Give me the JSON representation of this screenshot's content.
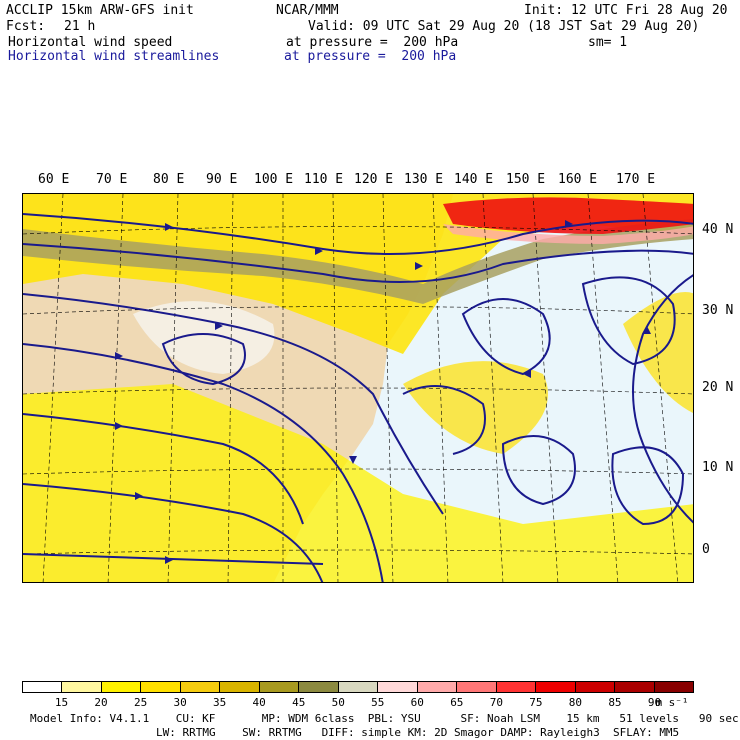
{
  "header": {
    "line1_left": "ACCLIP 15km ARW-GFS init",
    "line1_center": "NCAR/MMM",
    "line1_right": "Init: 12 UTC Fri 28 Aug 20",
    "fcst_label": "Fcst:",
    "fcst_value": "21 h",
    "valid": "Valid: 09 UTC Sat 29 Aug 20 (18 JST Sat 29 Aug 20)",
    "field1_name": "Horizontal wind speed",
    "field1_level": "at pressure =  200 hPa",
    "smoothing": "sm= 1",
    "field2_name": "Horizontal wind streamlines",
    "field2_level": "at pressure =  200 hPa"
  },
  "map": {
    "lon_labels": [
      "60 E",
      "70 E",
      "80 E",
      "90 E",
      "100 E",
      "110 E",
      "120 E",
      "130 E",
      "140 E",
      "150 E",
      "160 E",
      "170 E"
    ],
    "lat_labels": [
      "40 N",
      "30 N",
      "20 N",
      "10 N",
      "0"
    ],
    "colors": {
      "ocean": "#eaf6fb",
      "land": "#efd9b4",
      "streamline": "#1a1a8c",
      "jet_olive": "#a8a060",
      "jet_red": "#ee1111"
    }
  },
  "colorbar": {
    "ticks": [
      "15",
      "20",
      "25",
      "30",
      "35",
      "40",
      "45",
      "50",
      "55",
      "60",
      "65",
      "70",
      "75",
      "80",
      "85",
      "90"
    ],
    "unit": "m s⁻¹",
    "colors": [
      "#ffffff",
      "#fff7a0",
      "#fff200",
      "#ffe000",
      "#f5cc10",
      "#d9b400",
      "#a89a20",
      "#8c8a40",
      "#d8d8c0",
      "#ffd9d9",
      "#ffaaaa",
      "#ff7777",
      "#ff3333",
      "#ee0000",
      "#cc0000",
      "#aa0000",
      "#880000"
    ]
  },
  "model_info": {
    "line1": "Model Info: V4.1.1    CU: KF       MP: WDM 6class  PBL: YSU      SF: Noah LSM    15 km   51 levels   90 sec",
    "line2": "LW: RRTMG    SW: RRTMG   DIFF: simple KM: 2D Smagor DAMP: Rayleigh3  SFLAY: MM5"
  }
}
